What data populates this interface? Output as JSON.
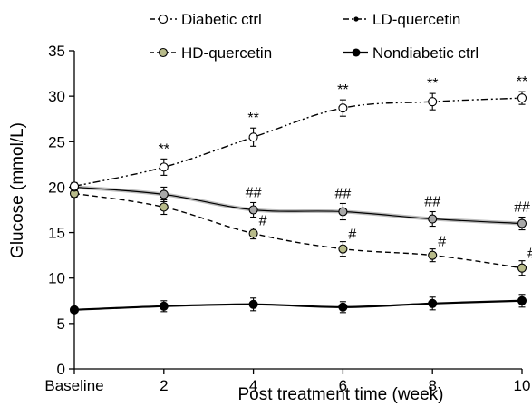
{
  "chart_data": {
    "type": "line",
    "title": "",
    "xlabel": "Post treatment time (week)",
    "ylabel": "Glucose (mmol/L)",
    "ylim": [
      0,
      35
    ],
    "yticks": [
      0,
      5,
      10,
      15,
      20,
      25,
      30,
      35
    ],
    "xticks": [
      "Baseline",
      "2",
      "4",
      "6",
      "8",
      "10"
    ],
    "x": [
      0,
      2,
      4,
      6,
      8,
      10
    ],
    "grid": false,
    "legend_position": "top",
    "series": [
      {
        "name": "Diabetic ctrl",
        "values": [
          20.1,
          22.2,
          25.5,
          28.7,
          29.4,
          29.8
        ],
        "errors": [
          0.4,
          0.9,
          1.0,
          0.9,
          0.9,
          0.7
        ],
        "line_style": "dash-dot-dot",
        "marker_fill": "#ffffff",
        "annotations": [
          "",
          "**",
          "**",
          "**",
          "**",
          "**"
        ]
      },
      {
        "name": "LD-quercetin",
        "values": [
          20.0,
          19.2,
          17.5,
          17.3,
          16.5,
          16.0
        ],
        "errors": [
          0.4,
          0.8,
          0.8,
          0.9,
          0.8,
          0.7
        ],
        "line_style": "solid-thin-gray",
        "marker_fill": "#a8a8a8",
        "annotations": [
          "",
          "",
          "##",
          "##",
          "##",
          "##"
        ]
      },
      {
        "name": "HD-quercetin",
        "values": [
          19.3,
          17.8,
          14.9,
          13.2,
          12.5,
          11.1
        ],
        "errors": [
          0.4,
          0.8,
          0.6,
          0.8,
          0.7,
          0.8
        ],
        "line_style": "dashed",
        "marker_fill": "#b8bb8a",
        "annotations": [
          "",
          "",
          "#",
          "#",
          "#",
          "#"
        ]
      },
      {
        "name": "Nondiabetic ctrl",
        "values": [
          6.5,
          6.9,
          7.1,
          6.8,
          7.2,
          7.5
        ],
        "errors": [
          0.3,
          0.6,
          0.7,
          0.6,
          0.7,
          0.7
        ],
        "line_style": "solid-thick",
        "marker_fill": "#000000",
        "annotations": [
          "",
          "",
          "",
          "",
          "",
          ""
        ]
      }
    ],
    "legend": [
      {
        "name": "Diabetic ctrl",
        "icon": "open-circle-dashdot"
      },
      {
        "name": "LD-quercetin",
        "icon": "small-dot-dashdot"
      },
      {
        "name": "HD-quercetin",
        "icon": "olive-circle-dashed"
      },
      {
        "name": "Nondiabetic ctrl",
        "icon": "filled-circle-solid"
      }
    ]
  }
}
